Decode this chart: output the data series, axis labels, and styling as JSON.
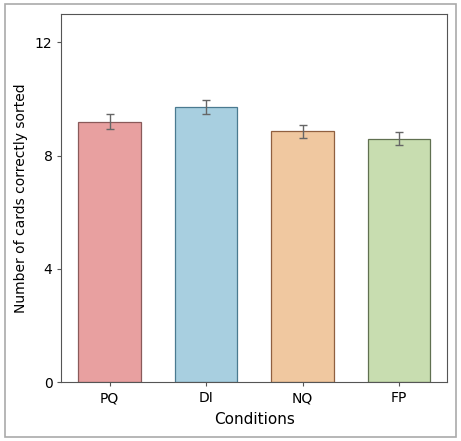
{
  "categories": [
    "PQ",
    "DI",
    "NQ",
    "FP"
  ],
  "values": [
    9.2,
    9.72,
    8.85,
    8.6
  ],
  "errors": [
    0.28,
    0.25,
    0.22,
    0.22
  ],
  "bar_colors": [
    "#e8a0a0",
    "#a8cfe0",
    "#f0c8a0",
    "#c8ddb0"
  ],
  "bar_edgecolors": [
    "#8a5a5a",
    "#4a7a90",
    "#906040",
    "#607050"
  ],
  "title": "",
  "xlabel": "Conditions",
  "ylabel": "Number of cards correctly sorted",
  "ylim": [
    0,
    13
  ],
  "yticks": [
    0,
    4,
    8,
    12
  ],
  "background_color": "#ffffff",
  "xlabel_fontsize": 11,
  "ylabel_fontsize": 10,
  "tick_fontsize": 10,
  "bar_width": 0.65,
  "capsize": 3,
  "error_color": "#666666",
  "spine_color": "#555555",
  "outer_border_color": "#aaaaaa"
}
